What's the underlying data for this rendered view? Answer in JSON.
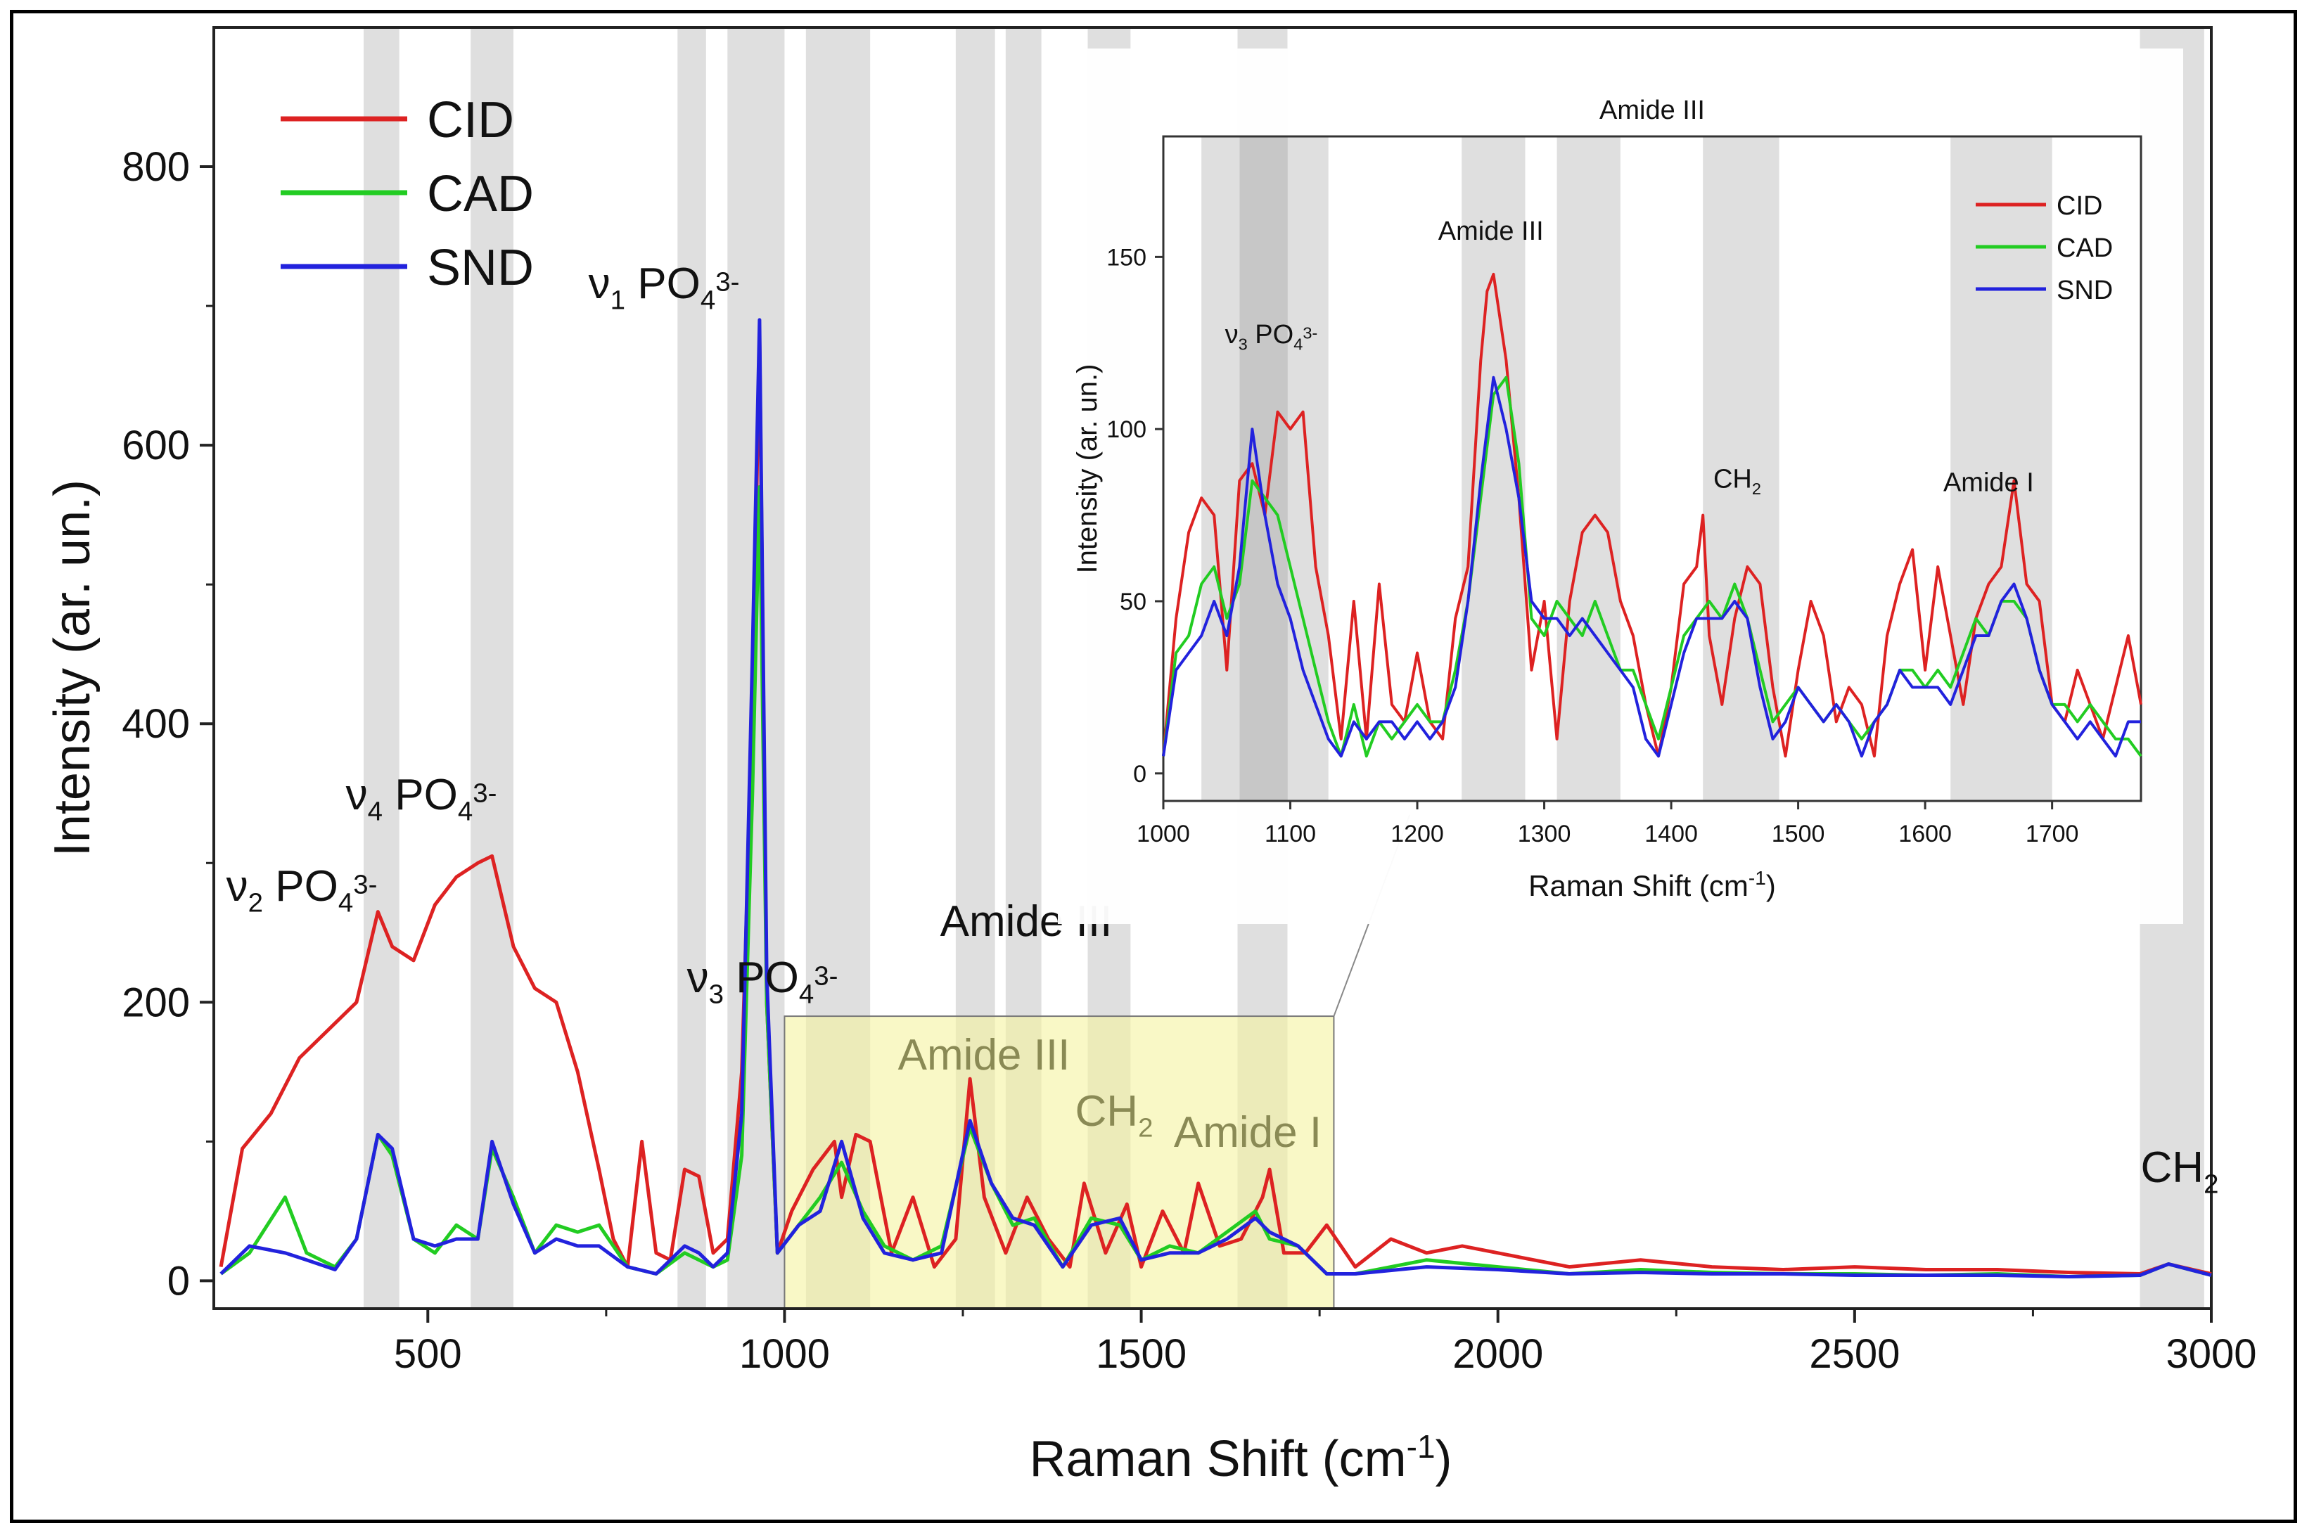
{
  "chart_data": [
    {
      "type": "line",
      "title": "",
      "xlabel": "Raman Shift (cm",
      "xlabel_sup": "-1",
      "xlabel_close": ")",
      "ylabel": "Intensity (ar. un.)",
      "xlim": [
        200,
        3000
      ],
      "ylim": [
        -20,
        900
      ],
      "xticks": [
        500,
        1000,
        1500,
        2000,
        2500,
        3000
      ],
      "yticks": [
        0,
        200,
        400,
        600,
        800
      ],
      "legend_position": "top-left",
      "series_colors": {
        "CID": "#dd2222",
        "CAD": "#22cc22",
        "SND": "#2222dd"
      },
      "series": [
        {
          "name": "CID",
          "x": [
            210,
            240,
            280,
            320,
            360,
            400,
            430,
            450,
            480,
            510,
            540,
            570,
            590,
            620,
            650,
            680,
            710,
            740,
            760,
            780,
            800,
            820,
            840,
            860,
            880,
            900,
            920,
            940,
            955,
            965,
            975,
            990,
            1010,
            1040,
            1070,
            1080,
            1100,
            1120,
            1150,
            1180,
            1210,
            1240,
            1260,
            1280,
            1310,
            1340,
            1370,
            1400,
            1420,
            1450,
            1480,
            1500,
            1530,
            1560,
            1580,
            1610,
            1640,
            1670,
            1680,
            1700,
            1730,
            1760,
            1800,
            1850,
            1900,
            1950,
            2000,
            2100,
            2200,
            2300,
            2400,
            2500,
            2600,
            2700,
            2800,
            2900,
            2940,
            3000
          ],
          "values": [
            10,
            95,
            120,
            160,
            180,
            200,
            265,
            240,
            230,
            270,
            290,
            300,
            305,
            240,
            210,
            200,
            150,
            80,
            30,
            10,
            100,
            20,
            15,
            80,
            75,
            20,
            30,
            150,
            400,
            680,
            200,
            20,
            50,
            80,
            100,
            60,
            105,
            100,
            20,
            60,
            10,
            30,
            145,
            60,
            20,
            60,
            30,
            10,
            70,
            20,
            55,
            10,
            50,
            20,
            70,
            25,
            30,
            60,
            80,
            20,
            20,
            40,
            10,
            30,
            20,
            25,
            20,
            10,
            15,
            10,
            8,
            10,
            8,
            8,
            6,
            5,
            12,
            5
          ]
        },
        {
          "name": "CAD",
          "x": [
            210,
            250,
            300,
            330,
            370,
            400,
            430,
            450,
            480,
            510,
            540,
            570,
            590,
            620,
            650,
            680,
            710,
            740,
            780,
            820,
            860,
            880,
            900,
            920,
            940,
            955,
            965,
            975,
            990,
            1020,
            1050,
            1080,
            1110,
            1140,
            1180,
            1220,
            1260,
            1290,
            1320,
            1350,
            1390,
            1430,
            1470,
            1500,
            1540,
            1580,
            1620,
            1660,
            1680,
            1720,
            1760,
            1800,
            1900,
            2000,
            2100,
            2200,
            2300,
            2400,
            2500,
            2600,
            2700,
            2800,
            2900,
            2940,
            3000
          ],
          "values": [
            5,
            20,
            60,
            20,
            10,
            30,
            105,
            90,
            30,
            20,
            40,
            30,
            95,
            60,
            20,
            40,
            35,
            40,
            10,
            5,
            20,
            15,
            10,
            15,
            90,
            350,
            570,
            200,
            20,
            40,
            60,
            85,
            50,
            25,
            15,
            25,
            110,
            70,
            40,
            45,
            10,
            45,
            40,
            15,
            25,
            20,
            35,
            50,
            30,
            25,
            5,
            5,
            15,
            10,
            5,
            8,
            6,
            5,
            5,
            4,
            5,
            3,
            4,
            12,
            4
          ]
        },
        {
          "name": "SND",
          "x": [
            210,
            250,
            300,
            330,
            370,
            400,
            430,
            450,
            480,
            510,
            540,
            570,
            590,
            620,
            650,
            680,
            710,
            740,
            780,
            820,
            860,
            880,
            900,
            920,
            940,
            955,
            965,
            975,
            990,
            1020,
            1050,
            1080,
            1110,
            1140,
            1180,
            1220,
            1260,
            1290,
            1320,
            1350,
            1390,
            1430,
            1470,
            1500,
            1540,
            1580,
            1620,
            1660,
            1680,
            1720,
            1760,
            1800,
            1900,
            2000,
            2100,
            2200,
            2300,
            2400,
            2500,
            2600,
            2700,
            2800,
            2900,
            2940,
            3000
          ],
          "values": [
            5,
            25,
            20,
            15,
            8,
            30,
            105,
            95,
            30,
            25,
            30,
            30,
            100,
            55,
            20,
            30,
            25,
            25,
            10,
            5,
            25,
            20,
            10,
            20,
            120,
            450,
            690,
            220,
            20,
            40,
            50,
            100,
            45,
            20,
            15,
            20,
            115,
            70,
            45,
            40,
            10,
            40,
            45,
            15,
            20,
            20,
            30,
            45,
            35,
            25,
            5,
            5,
            10,
            8,
            5,
            6,
            5,
            5,
            4,
            4,
            4,
            3,
            4,
            12,
            4
          ]
        }
      ],
      "shaded_bands": [
        [
          410,
          460
        ],
        [
          560,
          620
        ],
        [
          850,
          890
        ],
        [
          920,
          1000
        ],
        [
          1030,
          1120
        ],
        [
          1240,
          1295
        ],
        [
          1310,
          1360
        ],
        [
          1425,
          1485
        ],
        [
          1635,
          1705
        ],
        [
          2900,
          2990
        ]
      ],
      "highlight_region": [
        1000,
        1770
      ],
      "annotations": [
        {
          "label": "ν₂ PO₄³⁻",
          "x": 410,
          "y": 270
        },
        {
          "label": "ν₄ PO₄³⁻",
          "x": 570,
          "y": 350
        },
        {
          "label": "ν₁ PO₄³⁻",
          "x": 880,
          "y": 700
        },
        {
          "label": "ν₃ PO₄³⁻",
          "x": 1000,
          "y": 230
        },
        {
          "label": "Amide III",
          "x": 1320,
          "y": 260
        },
        {
          "label": "Amide III",
          "x": 1250,
          "y": 170
        },
        {
          "label": "CH₂",
          "x": 1460,
          "y": 120
        },
        {
          "label": "Amide I",
          "x": 1720,
          "y": 115
        },
        {
          "label": "CH₂",
          "x": 2960,
          "y": 85
        }
      ]
    },
    {
      "type": "line",
      "title": "Amide III",
      "xlabel": "Raman Shift (cm",
      "xlabel_sup": "-1",
      "xlabel_close": ")",
      "ylabel": "Intensity (ar. un.)",
      "xlim": [
        1000,
        1770
      ],
      "ylim": [
        -8,
        185
      ],
      "xticks": [
        1000,
        1100,
        1200,
        1300,
        1400,
        1500,
        1600,
        1700
      ],
      "yticks": [
        0,
        50,
        100,
        150
      ],
      "legend_position": "top-right",
      "series": [
        {
          "name": "CID",
          "x": [
            1000,
            1010,
            1020,
            1030,
            1040,
            1050,
            1060,
            1070,
            1080,
            1090,
            1100,
            1110,
            1120,
            1130,
            1140,
            1150,
            1160,
            1170,
            1180,
            1190,
            1200,
            1210,
            1220,
            1230,
            1240,
            1250,
            1255,
            1260,
            1270,
            1280,
            1290,
            1300,
            1310,
            1320,
            1330,
            1340,
            1350,
            1360,
            1370,
            1380,
            1390,
            1400,
            1410,
            1420,
            1425,
            1430,
            1440,
            1450,
            1460,
            1470,
            1480,
            1490,
            1500,
            1510,
            1520,
            1530,
            1540,
            1550,
            1560,
            1570,
            1580,
            1590,
            1600,
            1610,
            1620,
            1630,
            1640,
            1650,
            1660,
            1670,
            1680,
            1690,
            1700,
            1710,
            1720,
            1730,
            1740,
            1750,
            1760,
            1770
          ],
          "values": [
            5,
            45,
            70,
            80,
            75,
            30,
            85,
            90,
            75,
            105,
            100,
            105,
            60,
            40,
            10,
            50,
            10,
            55,
            20,
            15,
            35,
            15,
            10,
            45,
            60,
            120,
            140,
            145,
            120,
            80,
            30,
            50,
            10,
            50,
            70,
            75,
            70,
            50,
            40,
            20,
            5,
            25,
            55,
            60,
            75,
            40,
            20,
            45,
            60,
            55,
            25,
            5,
            30,
            50,
            40,
            15,
            25,
            20,
            5,
            40,
            55,
            65,
            30,
            60,
            40,
            20,
            45,
            55,
            60,
            85,
            55,
            50,
            20,
            15,
            30,
            20,
            10,
            25,
            40,
            20
          ]
        },
        {
          "name": "CAD",
          "x": [
            1000,
            1010,
            1020,
            1030,
            1040,
            1050,
            1060,
            1070,
            1080,
            1090,
            1100,
            1110,
            1120,
            1130,
            1140,
            1150,
            1160,
            1170,
            1180,
            1190,
            1200,
            1210,
            1220,
            1230,
            1240,
            1250,
            1260,
            1270,
            1280,
            1290,
            1300,
            1310,
            1320,
            1330,
            1340,
            1350,
            1360,
            1370,
            1380,
            1390,
            1400,
            1410,
            1420,
            1430,
            1440,
            1450,
            1460,
            1470,
            1480,
            1490,
            1500,
            1510,
            1520,
            1530,
            1540,
            1550,
            1560,
            1570,
            1580,
            1590,
            1600,
            1610,
            1620,
            1630,
            1640,
            1650,
            1660,
            1670,
            1680,
            1690,
            1700,
            1710,
            1720,
            1730,
            1740,
            1750,
            1760,
            1770
          ],
          "values": [
            5,
            35,
            40,
            55,
            60,
            45,
            55,
            85,
            80,
            75,
            60,
            45,
            30,
            15,
            5,
            20,
            5,
            15,
            10,
            15,
            20,
            15,
            15,
            30,
            50,
            80,
            110,
            115,
            90,
            45,
            40,
            50,
            45,
            40,
            50,
            40,
            30,
            30,
            20,
            10,
            25,
            40,
            45,
            50,
            45,
            55,
            45,
            30,
            15,
            20,
            25,
            20,
            15,
            20,
            15,
            10,
            15,
            20,
            30,
            30,
            25,
            30,
            25,
            35,
            45,
            40,
            50,
            50,
            45,
            30,
            20,
            20,
            15,
            20,
            15,
            10,
            10,
            5
          ]
        },
        {
          "name": "SND",
          "x": [
            1000,
            1010,
            1020,
            1030,
            1040,
            1050,
            1060,
            1070,
            1080,
            1090,
            1100,
            1110,
            1120,
            1130,
            1140,
            1150,
            1160,
            1170,
            1180,
            1190,
            1200,
            1210,
            1220,
            1230,
            1240,
            1250,
            1260,
            1270,
            1280,
            1290,
            1300,
            1310,
            1320,
            1330,
            1340,
            1350,
            1360,
            1370,
            1380,
            1390,
            1400,
            1410,
            1420,
            1430,
            1440,
            1450,
            1460,
            1470,
            1480,
            1490,
            1500,
            1510,
            1520,
            1530,
            1540,
            1550,
            1560,
            1570,
            1580,
            1590,
            1600,
            1610,
            1620,
            1630,
            1640,
            1650,
            1660,
            1670,
            1680,
            1690,
            1700,
            1710,
            1720,
            1730,
            1740,
            1750,
            1760,
            1770
          ],
          "values": [
            5,
            30,
            35,
            40,
            50,
            40,
            60,
            100,
            75,
            55,
            45,
            30,
            20,
            10,
            5,
            15,
            10,
            15,
            15,
            10,
            15,
            10,
            15,
            25,
            50,
            85,
            115,
            100,
            80,
            50,
            45,
            45,
            40,
            45,
            40,
            35,
            30,
            25,
            10,
            5,
            20,
            35,
            45,
            45,
            45,
            50,
            45,
            25,
            10,
            15,
            25,
            20,
            15,
            20,
            15,
            5,
            15,
            20,
            30,
            25,
            25,
            25,
            20,
            30,
            40,
            40,
            50,
            55,
            45,
            30,
            20,
            15,
            10,
            15,
            10,
            5,
            15,
            15
          ]
        }
      ],
      "shaded_bands": [
        [
          1030,
          1060
        ],
        [
          1060,
          1098
        ],
        [
          1098,
          1130
        ],
        [
          1235,
          1285
        ],
        [
          1310,
          1360
        ],
        [
          1425,
          1485
        ],
        [
          1620,
          1700
        ]
      ],
      "annotations": [
        {
          "label": "Amide III",
          "x": 1258,
          "y": 160
        },
        {
          "label": "ν₃ PO₄³⁻",
          "x": 1085,
          "y": 125
        },
        {
          "label": "CH₂",
          "x": 1452,
          "y": 85
        },
        {
          "label": "Amide I",
          "x": 1650,
          "y": 85
        }
      ]
    }
  ]
}
